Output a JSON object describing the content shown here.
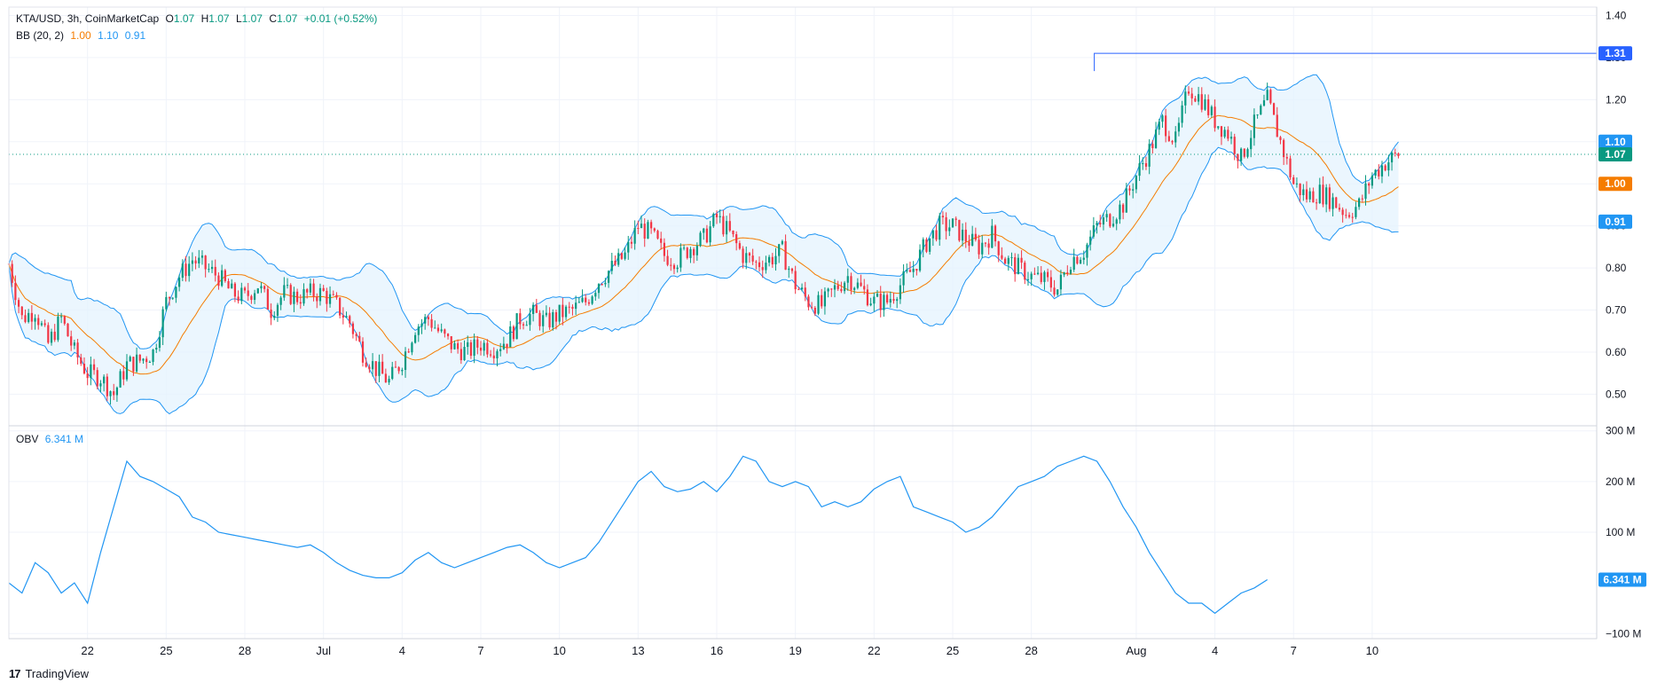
{
  "header": {
    "symbol": "KTA/USD, 3h, CoinMarketCap",
    "o_label": "O",
    "o": "1.07",
    "h_label": "H",
    "h": "1.07",
    "l_label": "L",
    "l": "1.07",
    "c_label": "C",
    "c": "1.07",
    "change": "+0.01 (+0.52%)"
  },
  "bb_legend": {
    "name": "BB (20, 2)",
    "basis": "1.00",
    "upper": "1.10",
    "lower": "0.91"
  },
  "obv_legend": {
    "name": "OBV",
    "value": "6.341 M"
  },
  "footer": {
    "logo": "17",
    "brand": "TradingView"
  },
  "colors": {
    "up": "#089981",
    "down": "#f23645",
    "basis": "#f57c00",
    "bands": "#2196f3",
    "fill": "#e3f2fd",
    "obv": "#2196f3",
    "last": "#089981"
  },
  "chart_data": [
    {
      "type": "candlestick",
      "x_ticks": [
        "22",
        "25",
        "28",
        "Jul",
        "4",
        "7",
        "10",
        "13",
        "16",
        "19",
        "22",
        "25",
        "28",
        "Aug",
        "4",
        "7",
        "10"
      ],
      "x_tick_days": [
        -9,
        -6,
        -3,
        0,
        3,
        6,
        9,
        12,
        15,
        18,
        21,
        24,
        27,
        31,
        34,
        37,
        40
      ],
      "x_range_days": [
        -12,
        41
      ],
      "y_ticks": [
        "1.40",
        "1.30",
        "1.20",
        "1.10",
        "1.00",
        "0.90",
        "0.80",
        "0.70",
        "0.60",
        "0.50"
      ],
      "ylim": [
        0.425,
        1.42
      ],
      "price_labels": [
        {
          "value": 1.31,
          "text": "1.31",
          "bg": "#2962ff"
        },
        {
          "value": 1.1,
          "text": "1.10",
          "bg": "#2196f3"
        },
        {
          "value": 1.07,
          "text": "1.07",
          "bg": "#089981"
        },
        {
          "value": 1.0,
          "text": "1.00",
          "bg": "#f57c00"
        },
        {
          "value": 0.91,
          "text": "0.91",
          "bg": "#2196f3"
        }
      ],
      "high_line": {
        "value": 1.31,
        "from_day": 29.4
      },
      "last_price": 1.07,
      "close_anchors": [
        [
          -12,
          0.81
        ],
        [
          -11.5,
          0.68
        ],
        [
          -11,
          0.7
        ],
        [
          -10.5,
          0.62
        ],
        [
          -10,
          0.68
        ],
        [
          -9.5,
          0.6
        ],
        [
          -9,
          0.55
        ],
        [
          -8.5,
          0.54
        ],
        [
          -8,
          0.5
        ],
        [
          -7.5,
          0.57
        ],
        [
          -7,
          0.58
        ],
        [
          -6.5,
          0.6
        ],
        [
          -6,
          0.72
        ],
        [
          -5.5,
          0.78
        ],
        [
          -5,
          0.82
        ],
        [
          -4.5,
          0.8
        ],
        [
          -4,
          0.78
        ],
        [
          -3.5,
          0.74
        ],
        [
          -3,
          0.73
        ],
        [
          -2.5,
          0.76
        ],
        [
          -2,
          0.7
        ],
        [
          -1.5,
          0.74
        ],
        [
          -1,
          0.73
        ],
        [
          -0.5,
          0.74
        ],
        [
          0,
          0.74
        ],
        [
          0.5,
          0.71
        ],
        [
          1,
          0.67
        ],
        [
          1.5,
          0.6
        ],
        [
          2,
          0.56
        ],
        [
          2.5,
          0.53
        ],
        [
          3,
          0.58
        ],
        [
          3.5,
          0.66
        ],
        [
          4,
          0.68
        ],
        [
          4.5,
          0.64
        ],
        [
          5,
          0.61
        ],
        [
          5.5,
          0.6
        ],
        [
          6,
          0.62
        ],
        [
          6.5,
          0.61
        ],
        [
          7,
          0.63
        ],
        [
          7.5,
          0.68
        ],
        [
          8,
          0.69
        ],
        [
          8.5,
          0.67
        ],
        [
          9,
          0.69
        ],
        [
          9.5,
          0.7
        ],
        [
          10,
          0.72
        ],
        [
          10.5,
          0.77
        ],
        [
          11,
          0.8
        ],
        [
          11.5,
          0.83
        ],
        [
          12,
          0.9
        ],
        [
          12.5,
          0.88
        ],
        [
          13,
          0.83
        ],
        [
          13.5,
          0.82
        ],
        [
          14,
          0.85
        ],
        [
          14.5,
          0.87
        ],
        [
          15,
          0.92
        ],
        [
          15.5,
          0.88
        ],
        [
          16,
          0.83
        ],
        [
          16.5,
          0.81
        ],
        [
          17,
          0.82
        ],
        [
          17.5,
          0.84
        ],
        [
          18,
          0.76
        ],
        [
          18.5,
          0.72
        ],
        [
          19,
          0.71
        ],
        [
          19.5,
          0.75
        ],
        [
          20,
          0.78
        ],
        [
          20.5,
          0.75
        ],
        [
          21,
          0.72
        ],
        [
          21.5,
          0.72
        ],
        [
          22,
          0.76
        ],
        [
          22.5,
          0.8
        ],
        [
          23,
          0.86
        ],
        [
          23.5,
          0.9
        ],
        [
          24,
          0.9
        ],
        [
          24.5,
          0.87
        ],
        [
          25,
          0.85
        ],
        [
          25.5,
          0.88
        ],
        [
          26,
          0.82
        ],
        [
          26.5,
          0.8
        ],
        [
          27,
          0.78
        ],
        [
          27.5,
          0.77
        ],
        [
          28,
          0.75
        ],
        [
          28.5,
          0.82
        ],
        [
          29,
          0.84
        ],
        [
          29.5,
          0.9
        ],
        [
          30,
          0.92
        ],
        [
          30.5,
          0.95
        ],
        [
          31,
          1.02
        ],
        [
          31.5,
          1.08
        ],
        [
          32,
          1.15
        ],
        [
          32.5,
          1.1
        ],
        [
          33,
          1.23
        ],
        [
          33.5,
          1.2
        ],
        [
          34,
          1.15
        ],
        [
          34.5,
          1.12
        ],
        [
          35,
          1.06
        ],
        [
          35.5,
          1.14
        ],
        [
          36,
          1.2
        ],
        [
          36.5,
          1.1
        ],
        [
          37,
          1.0
        ],
        [
          37.5,
          0.97
        ],
        [
          38,
          0.98
        ],
        [
          38.5,
          0.96
        ],
        [
          39,
          0.93
        ],
        [
          39.5,
          0.95
        ],
        [
          40,
          1.02
        ],
        [
          40.5,
          1.05
        ],
        [
          41,
          1.07
        ]
      ],
      "basis": {
        "name": "BB basis",
        "value": 1.0
      },
      "upper": {
        "name": "BB upper",
        "value": 1.1
      },
      "lower": {
        "name": "BB lower",
        "value": 0.91
      }
    },
    {
      "type": "line",
      "series_name": "OBV",
      "y_ticks": [
        "300 M",
        "200 M",
        "100 M",
        "−100 M"
      ],
      "y_tick_values": [
        300,
        200,
        100,
        -100
      ],
      "ylim": [
        -110,
        310
      ],
      "last_value": 6.341,
      "last_label": "6.341 M",
      "points": [
        [
          -12,
          0
        ],
        [
          -11.5,
          -20
        ],
        [
          -11,
          40
        ],
        [
          -10.5,
          20
        ],
        [
          -10,
          -20
        ],
        [
          -9.5,
          0
        ],
        [
          -9,
          -40
        ],
        [
          -8.5,
          60
        ],
        [
          -8,
          150
        ],
        [
          -7.5,
          240
        ],
        [
          -7,
          210
        ],
        [
          -6.5,
          200
        ],
        [
          -6,
          185
        ],
        [
          -5.5,
          170
        ],
        [
          -5,
          130
        ],
        [
          -4.5,
          120
        ],
        [
          -4,
          100
        ],
        [
          -3.5,
          95
        ],
        [
          -3,
          90
        ],
        [
          -2.5,
          85
        ],
        [
          -2,
          80
        ],
        [
          -1.5,
          75
        ],
        [
          -1,
          70
        ],
        [
          -0.5,
          75
        ],
        [
          0,
          60
        ],
        [
          0.5,
          40
        ],
        [
          1,
          25
        ],
        [
          1.5,
          15
        ],
        [
          2,
          10
        ],
        [
          2.5,
          10
        ],
        [
          3,
          20
        ],
        [
          3.5,
          45
        ],
        [
          4,
          60
        ],
        [
          4.5,
          40
        ],
        [
          5,
          30
        ],
        [
          5.5,
          40
        ],
        [
          6,
          50
        ],
        [
          6.5,
          60
        ],
        [
          7,
          70
        ],
        [
          7.5,
          75
        ],
        [
          8,
          60
        ],
        [
          8.5,
          40
        ],
        [
          9,
          30
        ],
        [
          9.5,
          40
        ],
        [
          10,
          50
        ],
        [
          10.5,
          80
        ],
        [
          11,
          120
        ],
        [
          11.5,
          160
        ],
        [
          12,
          200
        ],
        [
          12.5,
          220
        ],
        [
          13,
          190
        ],
        [
          13.5,
          180
        ],
        [
          14,
          185
        ],
        [
          14.5,
          200
        ],
        [
          15,
          180
        ],
        [
          15.5,
          210
        ],
        [
          16,
          250
        ],
        [
          16.5,
          240
        ],
        [
          17,
          200
        ],
        [
          17.5,
          190
        ],
        [
          18,
          200
        ],
        [
          18.5,
          190
        ],
        [
          19,
          150
        ],
        [
          19.5,
          160
        ],
        [
          20,
          150
        ],
        [
          20.5,
          160
        ],
        [
          21,
          185
        ],
        [
          21.5,
          200
        ],
        [
          22,
          210
        ],
        [
          22.5,
          150
        ],
        [
          23,
          140
        ],
        [
          23.5,
          130
        ],
        [
          24,
          120
        ],
        [
          24.5,
          100
        ],
        [
          25,
          110
        ],
        [
          25.5,
          130
        ],
        [
          26,
          160
        ],
        [
          26.5,
          190
        ],
        [
          27,
          200
        ],
        [
          27.5,
          210
        ],
        [
          28,
          230
        ],
        [
          28.5,
          240
        ],
        [
          29,
          250
        ],
        [
          29.5,
          240
        ],
        [
          30,
          200
        ],
        [
          30.5,
          150
        ],
        [
          31,
          110
        ],
        [
          31.5,
          60
        ],
        [
          32,
          20
        ],
        [
          32.5,
          -20
        ],
        [
          33,
          -40
        ],
        [
          33.5,
          -40
        ],
        [
          34,
          -60
        ],
        [
          34.5,
          -40
        ],
        [
          35,
          -20
        ],
        [
          35.5,
          -10
        ],
        [
          36,
          6.341
        ]
      ]
    }
  ]
}
